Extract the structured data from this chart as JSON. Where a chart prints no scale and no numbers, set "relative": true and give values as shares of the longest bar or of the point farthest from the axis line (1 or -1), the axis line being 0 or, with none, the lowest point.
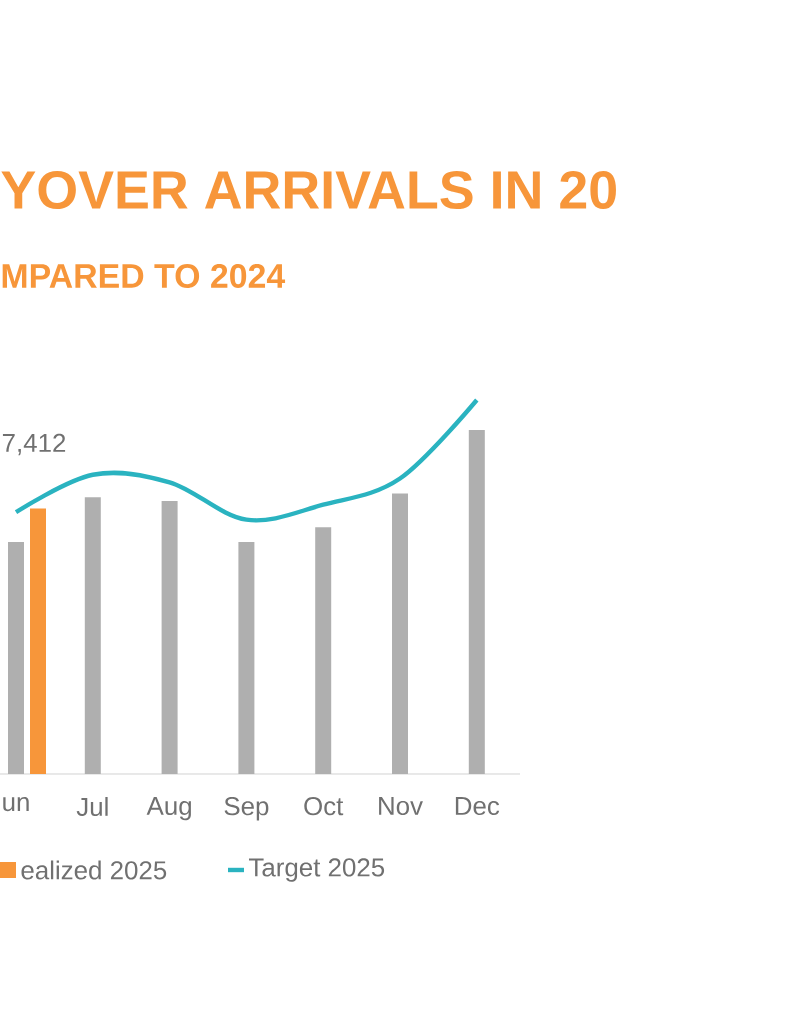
{
  "chart_data": {
    "type": "bar",
    "title": "YOVER ARRIVALS IN 20",
    "subtitle": "MPARED TO 2024",
    "relative": true,
    "categories": [
      "un",
      "Jul",
      "Aug",
      "Sep",
      "Oct",
      "Nov",
      "Dec"
    ],
    "series": [
      {
        "color": "#afafaf",
        "values": [
          0.62,
          0.74,
          0.73,
          0.62,
          0.66,
          0.75,
          0.92
        ]
      },
      {
        "name": "ealized 2025",
        "color": "#f7963a",
        "values": [
          0.71,
          null,
          null,
          null,
          null,
          null,
          null
        ]
      },
      {
        "name": "Target 2025",
        "type": "line",
        "color": "#2ab3c0",
        "values": [
          0.7,
          0.8,
          0.78,
          0.68,
          0.72,
          0.79,
          1.0
        ]
      }
    ],
    "annotations": [
      "7,412"
    ],
    "legend": "bottom",
    "marker": "none",
    "line_style": "solid"
  }
}
